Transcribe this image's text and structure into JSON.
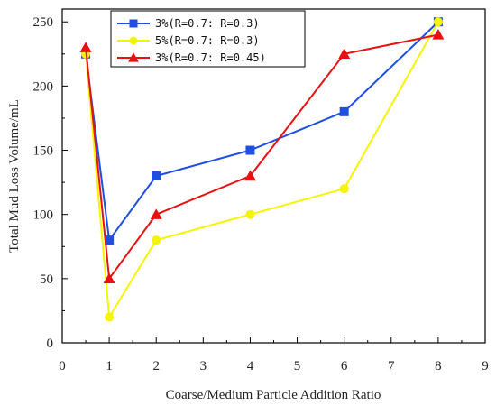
{
  "chart_data": {
    "type": "line",
    "xlabel": "Coarse/Medium Particle Addition Ratio",
    "ylabel": "Total Mud Loss Volume/mL",
    "xlim": [
      0,
      9
    ],
    "ylim": [
      0,
      260
    ],
    "x_ticks": [
      "0",
      "1",
      "2",
      "3",
      "4",
      "5",
      "6",
      "7",
      "8",
      "9"
    ],
    "y_ticks": [
      "0",
      "50",
      "100",
      "150",
      "200",
      "250"
    ],
    "x": [
      0.5,
      1,
      2,
      4,
      6,
      8
    ],
    "grid": false,
    "legend_position": "top-left",
    "series": [
      {
        "name": "3%(R=0.7: R=0.3)",
        "color": "#1f4fe0",
        "marker": "square",
        "values": [
          225,
          80,
          130,
          150,
          180,
          250
        ]
      },
      {
        "name": "5%(R=0.7: R=0.3)",
        "color": "#f5f500",
        "marker": "circle",
        "values": [
          225,
          20,
          80,
          100,
          120,
          250
        ]
      },
      {
        "name": "3%(R=0.7: R=0.45)",
        "color": "#e81010",
        "marker": "triangle",
        "values": [
          230,
          50,
          100,
          130,
          225,
          240
        ]
      }
    ]
  }
}
